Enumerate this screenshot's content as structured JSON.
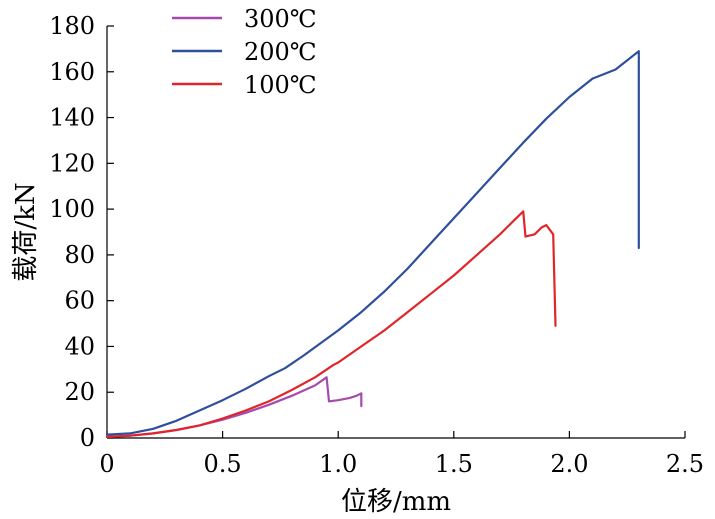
{
  "chart_data": {
    "type": "line",
    "xlabel": "位移/mm",
    "ylabel": "载荷/kN",
    "xlim": [
      0,
      2.5
    ],
    "ylim": [
      0,
      180
    ],
    "x_ticks": [
      0,
      0.5,
      1.0,
      1.5,
      2.0,
      2.5
    ],
    "x_tick_labels": [
      "0",
      "0.5",
      "1.0",
      "1.5",
      "2.0",
      "2.5"
    ],
    "y_ticks": [
      0,
      20,
      40,
      60,
      80,
      100,
      120,
      140,
      160,
      180
    ],
    "y_tick_labels": [
      "0",
      "20",
      "40",
      "60",
      "80",
      "100",
      "120",
      "140",
      "160",
      "180"
    ],
    "grid": false,
    "legend_position": "top-left",
    "series": [
      {
        "name": "300℃",
        "color": "#a64ab0",
        "points": [
          [
            0,
            0.5
          ],
          [
            0.1,
            1
          ],
          [
            0.2,
            2
          ],
          [
            0.3,
            3.5
          ],
          [
            0.4,
            5.5
          ],
          [
            0.5,
            8
          ],
          [
            0.6,
            11
          ],
          [
            0.7,
            14.5
          ],
          [
            0.8,
            18.5
          ],
          [
            0.9,
            23
          ],
          [
            0.95,
            26.5
          ],
          [
            0.96,
            16
          ],
          [
            1.0,
            16.5
          ],
          [
            1.05,
            17.5
          ],
          [
            1.08,
            18.5
          ],
          [
            1.1,
            19.5
          ],
          [
            1.1,
            14
          ]
        ]
      },
      {
        "name": "200℃",
        "color": "#2f4f9c",
        "points": [
          [
            0,
            1.5
          ],
          [
            0.1,
            2
          ],
          [
            0.2,
            4
          ],
          [
            0.3,
            7.5
          ],
          [
            0.4,
            12
          ],
          [
            0.5,
            16.5
          ],
          [
            0.6,
            21.5
          ],
          [
            0.7,
            27
          ],
          [
            0.77,
            30.5
          ],
          [
            0.85,
            36
          ],
          [
            1.0,
            47
          ],
          [
            1.1,
            55
          ],
          [
            1.2,
            64
          ],
          [
            1.3,
            74
          ],
          [
            1.4,
            85
          ],
          [
            1.5,
            96
          ],
          [
            1.6,
            107
          ],
          [
            1.7,
            118
          ],
          [
            1.8,
            129
          ],
          [
            1.9,
            139.5
          ],
          [
            2.0,
            149
          ],
          [
            2.1,
            157
          ],
          [
            2.2,
            161
          ],
          [
            2.3,
            169
          ],
          [
            2.3,
            83
          ]
        ]
      },
      {
        "name": "100℃",
        "color": "#e0262b",
        "points": [
          [
            0,
            0.5
          ],
          [
            0.1,
            1
          ],
          [
            0.2,
            2
          ],
          [
            0.3,
            3.5
          ],
          [
            0.4,
            5.5
          ],
          [
            0.5,
            8.5
          ],
          [
            0.6,
            12
          ],
          [
            0.7,
            16
          ],
          [
            0.8,
            21
          ],
          [
            0.9,
            26.5
          ],
          [
            0.98,
            32
          ],
          [
            1.0,
            33
          ],
          [
            1.1,
            40
          ],
          [
            1.2,
            47
          ],
          [
            1.3,
            55
          ],
          [
            1.4,
            63
          ],
          [
            1.5,
            71
          ],
          [
            1.6,
            80
          ],
          [
            1.7,
            89
          ],
          [
            1.75,
            94
          ],
          [
            1.8,
            99
          ],
          [
            1.81,
            88
          ],
          [
            1.85,
            89
          ],
          [
            1.88,
            92
          ],
          [
            1.9,
            93
          ],
          [
            1.93,
            89
          ],
          [
            1.94,
            49
          ]
        ]
      }
    ]
  }
}
